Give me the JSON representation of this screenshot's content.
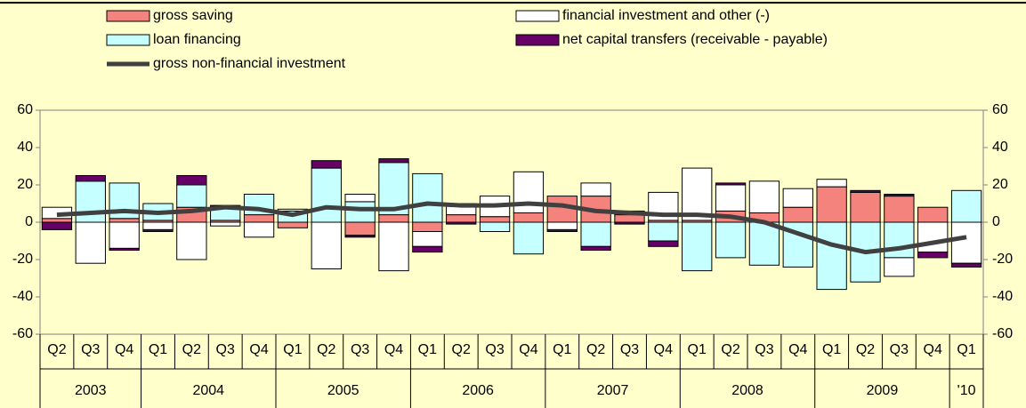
{
  "chart_data": {
    "type": "bar",
    "stacked": true,
    "categories": [
      "Q2",
      "Q3",
      "Q4",
      "Q1",
      "Q2",
      "Q3",
      "Q4",
      "Q1",
      "Q2",
      "Q3",
      "Q4",
      "Q1",
      "Q2",
      "Q3",
      "Q4",
      "Q1",
      "Q2",
      "Q3",
      "Q4",
      "Q1",
      "Q2",
      "Q3",
      "Q4",
      "Q1",
      "Q2",
      "Q3",
      "Q4",
      "Q1"
    ],
    "category_groups": [
      "2003",
      "2003",
      "2003",
      "2004",
      "2004",
      "2004",
      "2004",
      "2005",
      "2005",
      "2005",
      "2005",
      "2006",
      "2006",
      "2006",
      "2006",
      "2007",
      "2007",
      "2007",
      "2007",
      "2008",
      "2008",
      "2008",
      "2008",
      "2009",
      "2009",
      "2009",
      "2009",
      "'10"
    ],
    "series": [
      {
        "name": "gross saving",
        "color": "#f4837d",
        "values": [
          2,
          0,
          2,
          1,
          8,
          1,
          4,
          -3,
          0,
          -7,
          4,
          -5,
          4,
          3,
          5,
          14,
          14,
          4,
          1,
          1,
          6,
          5,
          8,
          19,
          16,
          14,
          8,
          0
        ]
      },
      {
        "name": "loan financing",
        "color": "#c6ffff",
        "values": [
          0,
          22,
          19,
          9,
          12,
          7,
          11,
          6,
          29,
          11,
          28,
          26,
          0,
          -5,
          -17,
          0,
          -13,
          0,
          -10,
          -26,
          -19,
          -23,
          -24,
          -36,
          -32,
          -19,
          0,
          17
        ]
      },
      {
        "name": "financial investment and other (-)",
        "color": "#ffffff",
        "values": [
          6,
          -22,
          -14,
          -4,
          -20,
          -2,
          -8,
          1,
          -25,
          4,
          -26,
          -8,
          6,
          11,
          22,
          -4,
          7,
          2,
          15,
          28,
          14,
          17,
          10,
          4,
          0,
          -10,
          -16,
          -22
        ]
      },
      {
        "name": "net capital transfers (receivable - payable)",
        "color": "#660066",
        "values": [
          -4,
          3,
          -1,
          -1,
          5,
          1,
          0,
          0,
          4,
          -1,
          2,
          -3,
          -1,
          0,
          0,
          -1,
          -2,
          -1,
          -3,
          0,
          1,
          0,
          0,
          0,
          1,
          1,
          -3,
          -2
        ]
      }
    ],
    "line_series": {
      "name": "gross non-financial investment",
      "color": "#404040",
      "values": [
        4,
        5,
        6,
        5,
        6,
        8,
        7,
        4,
        8,
        7,
        7,
        10,
        9,
        9,
        10,
        9,
        6,
        5,
        4,
        4,
        3,
        0,
        -6,
        -12,
        -16,
        -14,
        -11,
        -8
      ]
    },
    "ylim": [
      -60,
      60
    ],
    "yticks": [
      -60,
      -40,
      -20,
      0,
      20,
      40,
      60
    ],
    "y2lim": [
      -60,
      60
    ],
    "y2ticks": [
      -60,
      -40,
      -20,
      0,
      20,
      40,
      60
    ],
    "grid": false
  }
}
